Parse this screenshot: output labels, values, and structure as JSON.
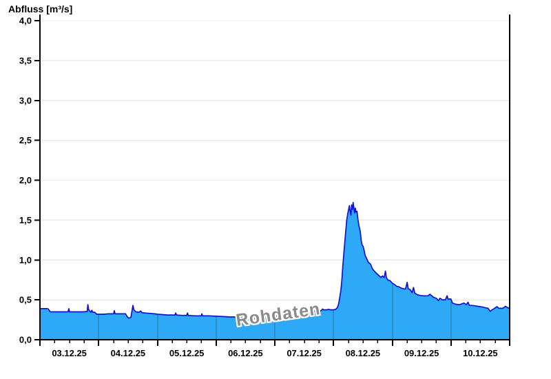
{
  "header": {
    "title": "Abfluss [m³/s]"
  },
  "watermark_label": "Rohdaten",
  "colors": {
    "background": "#ffffff",
    "area_fill": "#2ea9f8",
    "curve_line": "#0d11d8",
    "grid_horizontal": "#ebebeb",
    "day_boundary_line": "#2f6e96",
    "axis": "#000000",
    "tick_text": "#000000",
    "watermark_text": "#8a8a8a",
    "watermark_halo": "#ffffff"
  },
  "chart_data": {
    "type": "area",
    "title": "Abfluss [m³/s]",
    "ylabel": "Abfluss [m³/s]",
    "xlabel": "",
    "unit": "m³/s",
    "ylim": [
      0,
      4
    ],
    "ytick_step": 0.5,
    "y_tick_labels": [
      "0,0",
      "0,5",
      "1,0",
      "1,5",
      "2,0",
      "2,5",
      "3,0",
      "3,5",
      "4,0"
    ],
    "x_tick_labels": [
      "03.12.25",
      "04.12.25",
      "05.12.25",
      "06.12.25",
      "07.12.25",
      "08.12.25",
      "09.12.25",
      "10.12.25"
    ],
    "x_axis": {
      "days_shown": 8,
      "major_tick": "midnight",
      "minor_tick_hours": 6
    },
    "grid": {
      "horizontal": "light",
      "vertical": "day boundaries inside filled area only"
    },
    "legend": null,
    "watermark": "Rohdaten",
    "peak": {
      "value": 1.72,
      "date": "08.12.25"
    },
    "series": [
      {
        "name": "Abfluss",
        "unit": "m³/s",
        "x_unit": "hours since 03.12.25 00:00",
        "points": [
          [
            0,
            0.39
          ],
          [
            1.5,
            0.39
          ],
          [
            3,
            0.39
          ],
          [
            3.4,
            0.385
          ],
          [
            4.2,
            0.35
          ],
          [
            6,
            0.35
          ],
          [
            8,
            0.35
          ],
          [
            10,
            0.35
          ],
          [
            11.5,
            0.35
          ],
          [
            11.8,
            0.39
          ],
          [
            12.1,
            0.35
          ],
          [
            14,
            0.35
          ],
          [
            16,
            0.35
          ],
          [
            18,
            0.35
          ],
          [
            19.3,
            0.355
          ],
          [
            19.6,
            0.44
          ],
          [
            19.9,
            0.38
          ],
          [
            20.3,
            0.36
          ],
          [
            20.8,
            0.345
          ],
          [
            21.2,
            0.37
          ],
          [
            21.6,
            0.345
          ],
          [
            22.4,
            0.345
          ],
          [
            23.2,
            0.32
          ],
          [
            24,
            0.32
          ],
          [
            26,
            0.32
          ],
          [
            28,
            0.325
          ],
          [
            30.1,
            0.325
          ],
          [
            30.4,
            0.365
          ],
          [
            30.7,
            0.325
          ],
          [
            33,
            0.325
          ],
          [
            35,
            0.325
          ],
          [
            35.6,
            0.29
          ],
          [
            36.3,
            0.27
          ],
          [
            37.2,
            0.28
          ],
          [
            38,
            0.43
          ],
          [
            38.4,
            0.375
          ],
          [
            39.2,
            0.35
          ],
          [
            40.5,
            0.345
          ],
          [
            41.2,
            0.36
          ],
          [
            41.7,
            0.34
          ],
          [
            43,
            0.335
          ],
          [
            45,
            0.33
          ],
          [
            47,
            0.325
          ],
          [
            48,
            0.32
          ],
          [
            50,
            0.315
          ],
          [
            52,
            0.31
          ],
          [
            55.2,
            0.31
          ],
          [
            55.5,
            0.335
          ],
          [
            55.8,
            0.31
          ],
          [
            58,
            0.305
          ],
          [
            60,
            0.305
          ],
          [
            60.3,
            0.335
          ],
          [
            60.6,
            0.305
          ],
          [
            63,
            0.3
          ],
          [
            65.9,
            0.3
          ],
          [
            66.2,
            0.325
          ],
          [
            66.5,
            0.3
          ],
          [
            69,
            0.3
          ],
          [
            72,
            0.295
          ],
          [
            75,
            0.29
          ],
          [
            78,
            0.285
          ],
          [
            82,
            0.285
          ],
          [
            86,
            0.285
          ],
          [
            90,
            0.29
          ],
          [
            93,
            0.29
          ],
          [
            96,
            0.295
          ],
          [
            99,
            0.3
          ],
          [
            102,
            0.305
          ],
          [
            105,
            0.31
          ],
          [
            107,
            0.315
          ],
          [
            109,
            0.325
          ],
          [
            110.5,
            0.335
          ],
          [
            111.3,
            0.345
          ],
          [
            112,
            0.35
          ],
          [
            112.3,
            0.375
          ],
          [
            112.7,
            0.355
          ],
          [
            113.4,
            0.36
          ],
          [
            113.7,
            0.4
          ],
          [
            114.1,
            0.365
          ],
          [
            115,
            0.365
          ],
          [
            115.5,
            0.385
          ],
          [
            116,
            0.375
          ],
          [
            117,
            0.375
          ],
          [
            118,
            0.38
          ],
          [
            119,
            0.375
          ],
          [
            120,
            0.375
          ],
          [
            120.8,
            0.38
          ],
          [
            121.5,
            0.4
          ],
          [
            122,
            0.44
          ],
          [
            122.5,
            0.52
          ],
          [
            123,
            0.62
          ],
          [
            123.4,
            0.74
          ],
          [
            123.8,
            0.92
          ],
          [
            124.2,
            1.08
          ],
          [
            124.6,
            1.22
          ],
          [
            125,
            1.36
          ],
          [
            125.4,
            1.5
          ],
          [
            125.8,
            1.58
          ],
          [
            126.2,
            1.64
          ],
          [
            126.5,
            1.68
          ],
          [
            126.8,
            1.61
          ],
          [
            127.1,
            1.56
          ],
          [
            127.4,
            1.69
          ],
          [
            127.7,
            1.63
          ],
          [
            128,
            1.72
          ],
          [
            128.3,
            1.66
          ],
          [
            128.6,
            1.59
          ],
          [
            128.9,
            1.65
          ],
          [
            129.2,
            1.6
          ],
          [
            129.6,
            1.61
          ],
          [
            130,
            1.5
          ],
          [
            130.4,
            1.43
          ],
          [
            130.9,
            1.36
          ],
          [
            131.4,
            1.23
          ],
          [
            131.7,
            1.19
          ],
          [
            132.1,
            1.17
          ],
          [
            132.5,
            1.12
          ],
          [
            132.9,
            1.06
          ],
          [
            133.5,
            1.02
          ],
          [
            134.1,
            0.98
          ],
          [
            134.6,
            0.96
          ],
          [
            135.1,
            0.95
          ],
          [
            135.6,
            0.91
          ],
          [
            136.1,
            0.88
          ],
          [
            136.7,
            0.86
          ],
          [
            137.3,
            0.84
          ],
          [
            138,
            0.82
          ],
          [
            138.7,
            0.8
          ],
          [
            139.4,
            0.78
          ],
          [
            140,
            0.8
          ],
          [
            140.7,
            0.78
          ],
          [
            141.2,
            0.86
          ],
          [
            141.6,
            0.78
          ],
          [
            142.2,
            0.75
          ],
          [
            143.1,
            0.74
          ],
          [
            144,
            0.71
          ],
          [
            145,
            0.69
          ],
          [
            145.8,
            0.67
          ],
          [
            146.6,
            0.665
          ],
          [
            147.5,
            0.65
          ],
          [
            148.5,
            0.64
          ],
          [
            149.4,
            0.635
          ],
          [
            150.1,
            0.72
          ],
          [
            150.5,
            0.64
          ],
          [
            151.3,
            0.63
          ],
          [
            152.1,
            0.59
          ],
          [
            152.7,
            0.655
          ],
          [
            153.2,
            0.585
          ],
          [
            154.2,
            0.565
          ],
          [
            155.5,
            0.555
          ],
          [
            157,
            0.55
          ],
          [
            158.6,
            0.55
          ],
          [
            159.4,
            0.57
          ],
          [
            160.2,
            0.55
          ],
          [
            161,
            0.53
          ],
          [
            162,
            0.52
          ],
          [
            162.9,
            0.49
          ],
          [
            163.5,
            0.52
          ],
          [
            164.5,
            0.5
          ],
          [
            165.7,
            0.5
          ],
          [
            166.4,
            0.55
          ],
          [
            166.8,
            0.51
          ],
          [
            168,
            0.51
          ],
          [
            168.6,
            0.46
          ],
          [
            170,
            0.445
          ],
          [
            171.5,
            0.44
          ],
          [
            173.3,
            0.46
          ],
          [
            174.3,
            0.44
          ],
          [
            175,
            0.47
          ],
          [
            175.5,
            0.43
          ],
          [
            176.5,
            0.43
          ],
          [
            178,
            0.425
          ],
          [
            179.8,
            0.415
          ],
          [
            181,
            0.41
          ],
          [
            182.1,
            0.4
          ],
          [
            183.2,
            0.395
          ],
          [
            184,
            0.355
          ],
          [
            184.8,
            0.375
          ],
          [
            185.4,
            0.385
          ],
          [
            186.8,
            0.415
          ],
          [
            187.5,
            0.395
          ],
          [
            189.2,
            0.395
          ],
          [
            190.3,
            0.42
          ],
          [
            191,
            0.405
          ],
          [
            192,
            0.39
          ]
        ]
      }
    ]
  }
}
